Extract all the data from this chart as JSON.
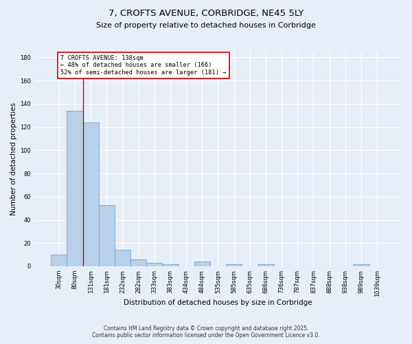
{
  "title_line1": "7, CROFTS AVENUE, CORBRIDGE, NE45 5LY",
  "title_line2": "Size of property relative to detached houses in Corbridge",
  "xlabel": "Distribution of detached houses by size in Corbridge",
  "ylabel": "Number of detached properties",
  "categories": [
    "30sqm",
    "80sqm",
    "131sqm",
    "181sqm",
    "232sqm",
    "282sqm",
    "333sqm",
    "383sqm",
    "434sqm",
    "484sqm",
    "535sqm",
    "585sqm",
    "635sqm",
    "686sqm",
    "736sqm",
    "787sqm",
    "837sqm",
    "888sqm",
    "938sqm",
    "989sqm",
    "1039sqm"
  ],
  "values": [
    10,
    134,
    124,
    53,
    14,
    6,
    3,
    2,
    0,
    4,
    0,
    2,
    0,
    2,
    0,
    0,
    0,
    0,
    0,
    2,
    0
  ],
  "bar_color": "#b8d0ea",
  "bar_edge_color": "#6699cc",
  "vline_x": 1.5,
  "vline_color": "#cc0000",
  "annotation_text": "7 CROFTS AVENUE: 138sqm\n← 48% of detached houses are smaller (166)\n52% of semi-detached houses are larger (181) →",
  "annotation_box_color": "#ffffff",
  "annotation_box_edge": "#cc0000",
  "ylim": [
    0,
    185
  ],
  "yticks": [
    0,
    20,
    40,
    60,
    80,
    100,
    120,
    140,
    160,
    180
  ],
  "background_color": "#e8eef8",
  "grid_color": "#ffffff",
  "footer_line1": "Contains HM Land Registry data © Crown copyright and database right 2025.",
  "footer_line2": "Contains public sector information licensed under the Open Government Licence v3.0."
}
